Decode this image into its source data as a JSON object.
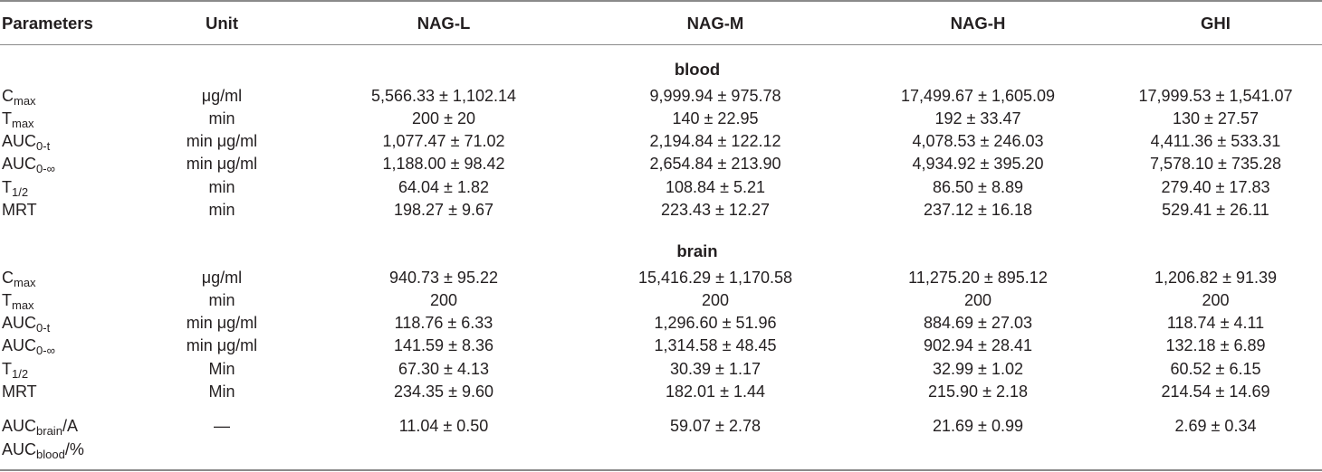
{
  "headers": [
    "Parameters",
    "Unit",
    "NAG-L",
    "NAG-M",
    "NAG-H",
    "GHI"
  ],
  "sections": [
    {
      "title": "blood",
      "rows": [
        {
          "p": "C",
          "sub": "max",
          "suffix": "",
          "unit": "μg/ml",
          "v": [
            "5,566.33 ± 1,102.14",
            "9,999.94 ± 975.78",
            "17,499.67 ± 1,605.09",
            "17,999.53 ± 1,541.07"
          ]
        },
        {
          "p": "T",
          "sub": "max",
          "suffix": "",
          "unit": "min",
          "v": [
            "200 ± 20",
            "140 ± 22.95",
            "192 ± 33.47",
            "130 ± 27.57"
          ]
        },
        {
          "p": "AUC",
          "sub": "0-t",
          "suffix": "",
          "unit": "min μg/ml",
          "v": [
            "1,077.47 ± 71.02",
            "2,194.84 ± 122.12",
            "4,078.53 ± 246.03",
            "4,411.36 ± 533.31"
          ]
        },
        {
          "p": "AUC",
          "sub": "0-∞",
          "suffix": "",
          "unit": "min μg/ml",
          "v": [
            "1,188.00 ± 98.42",
            "2,654.84 ± 213.90",
            "4,934.92 ± 395.20",
            "7,578.10 ± 735.28"
          ]
        },
        {
          "p": "T",
          "sub": "1/2",
          "suffix": "",
          "unit": "min",
          "v": [
            "64.04 ± 1.82",
            "108.84 ± 5.21",
            "86.50 ± 8.89",
            "279.40 ± 17.83"
          ]
        },
        {
          "p": "MRT",
          "sub": "",
          "suffix": "",
          "unit": "min",
          "v": [
            "198.27 ± 9.67",
            "223.43 ± 12.27",
            "237.12 ± 16.18",
            "529.41 ± 26.11"
          ]
        }
      ]
    },
    {
      "title": "brain",
      "rows": [
        {
          "p": "C",
          "sub": "max",
          "suffix": "",
          "unit": "μg/ml",
          "v": [
            "940.73 ± 95.22",
            "15,416.29 ± 1,170.58",
            "11,275.20 ± 895.12",
            "1,206.82 ± 91.39"
          ]
        },
        {
          "p": "T",
          "sub": "max",
          "suffix": "",
          "unit": "min",
          "v": [
            "200",
            "200",
            "200",
            "200"
          ]
        },
        {
          "p": "AUC",
          "sub": "0-t",
          "suffix": "",
          "unit": "min μg/ml",
          "v": [
            "118.76 ± 6.33",
            "1,296.60 ± 51.96",
            "884.69 ± 27.03",
            "118.74 ± 4.11"
          ]
        },
        {
          "p": "AUC",
          "sub": "0-∞",
          "suffix": "",
          "unit": "min μg/ml",
          "v": [
            "141.59 ± 8.36",
            "1,314.58 ± 48.45",
            "902.94 ± 28.41",
            "132.18 ± 6.89"
          ]
        },
        {
          "p": "T",
          "sub": "1/2",
          "suffix": "",
          "unit": "Min",
          "v": [
            "67.30 ± 4.13",
            "30.39 ± 1.17",
            "32.99 ± 1.02",
            "60.52 ± 6.15"
          ]
        },
        {
          "p": "MRT",
          "sub": "",
          "suffix": "",
          "unit": "Min",
          "v": [
            "234.35 ± 9.60",
            "182.01 ± 1.44",
            "215.90 ± 2.18",
            "214.54 ± 14.69"
          ]
        }
      ]
    }
  ],
  "last_row": {
    "line1_p": "AUC",
    "line1_sub": "brain",
    "line1_suffix": "/A",
    "line2_p": "AUC",
    "line2_sub": "blood",
    "line2_suffix": "/%",
    "unit": "—",
    "v": [
      "11.04 ± 0.50",
      "59.07 ± 2.78",
      "21.69 ± 0.99",
      "2.69 ± 0.34"
    ]
  }
}
